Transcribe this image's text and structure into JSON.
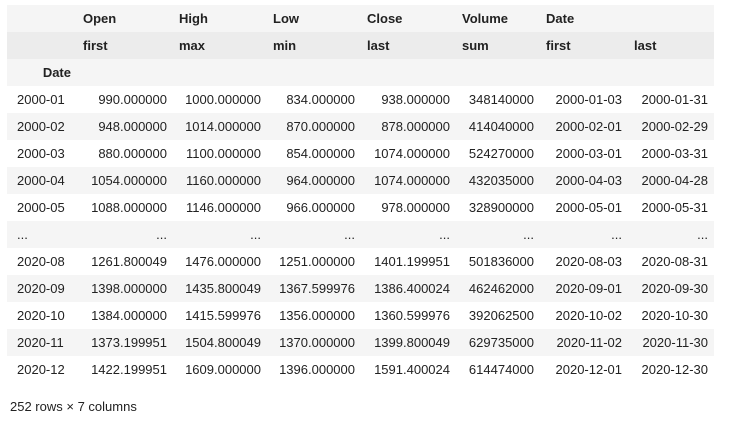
{
  "columns_level1": [
    "",
    "Open",
    "High",
    "Low",
    "Close",
    "Volume",
    "Date",
    ""
  ],
  "columns_level2": [
    "",
    "first",
    "max",
    "min",
    "last",
    "sum",
    "first",
    "last"
  ],
  "index_name": "Date",
  "rows": [
    [
      "2000-01",
      "990.000000",
      "1000.000000",
      "834.000000",
      "938.000000",
      "348140000",
      "2000-01-03",
      "2000-01-31"
    ],
    [
      "2000-02",
      "948.000000",
      "1014.000000",
      "870.000000",
      "878.000000",
      "414040000",
      "2000-02-01",
      "2000-02-29"
    ],
    [
      "2000-03",
      "880.000000",
      "1100.000000",
      "854.000000",
      "1074.000000",
      "524270000",
      "2000-03-01",
      "2000-03-31"
    ],
    [
      "2000-04",
      "1054.000000",
      "1160.000000",
      "964.000000",
      "1074.000000",
      "432035000",
      "2000-04-03",
      "2000-04-28"
    ],
    [
      "2000-05",
      "1088.000000",
      "1146.000000",
      "966.000000",
      "978.000000",
      "328900000",
      "2000-05-01",
      "2000-05-31"
    ],
    [
      "...",
      "...",
      "...",
      "...",
      "...",
      "...",
      "...",
      "..."
    ],
    [
      "2020-08",
      "1261.800049",
      "1476.000000",
      "1251.000000",
      "1401.199951",
      "501836000",
      "2020-08-03",
      "2020-08-31"
    ],
    [
      "2020-09",
      "1398.000000",
      "1435.800049",
      "1367.599976",
      "1386.400024",
      "462462000",
      "2020-09-01",
      "2020-09-30"
    ],
    [
      "2020-10",
      "1384.000000",
      "1415.599976",
      "1356.000000",
      "1360.599976",
      "392062500",
      "2020-10-02",
      "2020-10-30"
    ],
    [
      "2020-11",
      "1373.199951",
      "1504.800049",
      "1370.000000",
      "1399.800049",
      "629735000",
      "2020-11-02",
      "2020-11-30"
    ],
    [
      "2020-12",
      "1422.199951",
      "1609.000000",
      "1396.000000",
      "1591.400024",
      "614474000",
      "2020-12-01",
      "2020-12-30"
    ]
  ],
  "shape_text": "252 rows × 7 columns"
}
